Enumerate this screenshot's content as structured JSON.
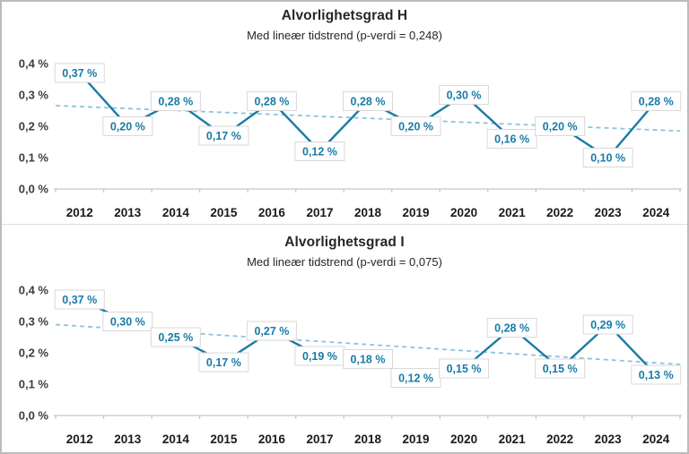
{
  "colors": {
    "series_line": "#1a7ba6",
    "trend_line": "#8cc4de",
    "data_label_text": "#1a7ba6",
    "data_label_border": "#d9d9d9",
    "axis_line": "#c6c6c6",
    "y_tick_text": "#3d3d3d",
    "x_tick_text": "#1a1a1a",
    "title_text": "#262626",
    "panel_background": "#ffffff"
  },
  "chart_data": [
    {
      "type": "line",
      "title": "Alvorlighetsgrad H",
      "subtitle": "Med lineær tidstrend (p-verdi = 0,248)",
      "categories": [
        "2012",
        "2013",
        "2014",
        "2015",
        "2016",
        "2017",
        "2018",
        "2019",
        "2020",
        "2021",
        "2022",
        "2023",
        "2024"
      ],
      "values": [
        0.37,
        0.2,
        0.28,
        0.17,
        0.28,
        0.12,
        0.28,
        0.2,
        0.3,
        0.16,
        0.2,
        0.1,
        0.28
      ],
      "data_labels": [
        "0,37 %",
        "0,20 %",
        "0,28 %",
        "0,17 %",
        "0,28 %",
        "0,12 %",
        "0,28 %",
        "0,20 %",
        "0,30 %",
        "0,16 %",
        "0,20 %",
        "0,10 %",
        "0,28 %"
      ],
      "y_ticks": [
        "0,0 %",
        "0,1 %",
        "0,2 %",
        "0,3 %",
        "0,4 %"
      ],
      "ylim": [
        0,
        0.4
      ],
      "grid": false,
      "legend": "none",
      "trendline": {
        "type": "linear",
        "style": "dashed",
        "start_value": 0.266,
        "end_value": 0.185,
        "p_value_label": "0,248"
      }
    },
    {
      "type": "line",
      "title": "Alvorlighetsgrad I",
      "subtitle": "Med lineær tidstrend (p-verdi = 0,075)",
      "categories": [
        "2012",
        "2013",
        "2014",
        "2015",
        "2016",
        "2017",
        "2018",
        "2019",
        "2020",
        "2021",
        "2022",
        "2023",
        "2024"
      ],
      "values": [
        0.37,
        0.3,
        0.25,
        0.17,
        0.27,
        0.19,
        0.18,
        0.12,
        0.15,
        0.28,
        0.15,
        0.29,
        0.13
      ],
      "data_labels": [
        "0,37 %",
        "0,30 %",
        "0,25 %",
        "0,17 %",
        "0,27 %",
        "0,19 %",
        "0,18 %",
        "0,12 %",
        "0,15 %",
        "0,28 %",
        "0,15 %",
        "0,29 %",
        "0,13 %"
      ],
      "y_ticks": [
        "0,0 %",
        "0,1 %",
        "0,2 %",
        "0,3 %",
        "0,4 %"
      ],
      "ylim": [
        0,
        0.4
      ],
      "grid": false,
      "legend": "none",
      "trendline": {
        "type": "linear",
        "style": "dashed",
        "start_value": 0.29,
        "end_value": 0.163,
        "p_value_label": "0,075"
      }
    }
  ]
}
